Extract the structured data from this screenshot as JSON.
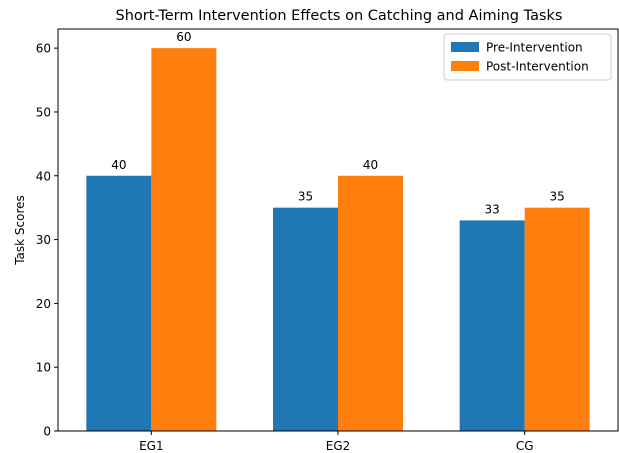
{
  "chart_data": {
    "type": "bar",
    "title": "Short-Term Intervention Effects on Catching and Aiming Tasks",
    "xlabel": "",
    "ylabel": "Task Scores",
    "categories": [
      "EG1",
      "EG2",
      "CG"
    ],
    "series": [
      {
        "name": "Pre-Intervention",
        "values": [
          40,
          35,
          33
        ],
        "color": "#1f77b4"
      },
      {
        "name": "Post-Intervention",
        "values": [
          60,
          40,
          35
        ],
        "color": "#ff7f0e"
      }
    ],
    "ylim": [
      0,
      63
    ],
    "yticks": [
      0,
      10,
      20,
      30,
      40,
      50,
      60
    ],
    "grid": false,
    "legend_position": "top-right",
    "data_labels": true
  }
}
